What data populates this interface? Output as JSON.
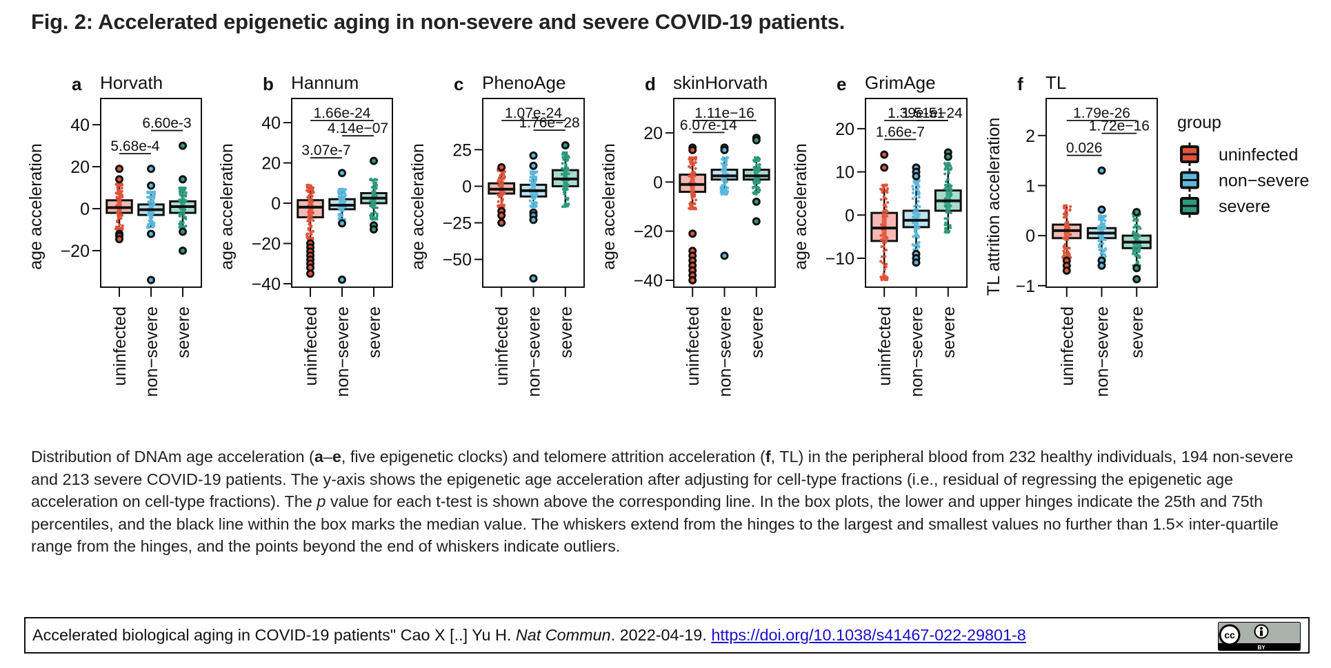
{
  "figure": {
    "title": "Fig. 2: Accelerated epigenetic aging in non-severe and severe COVID-19 patients."
  },
  "caption": {
    "segments": [
      {
        "text": "Distribution of DNAm age acceleration (",
        "style": "normal"
      },
      {
        "text": "a",
        "style": "bold"
      },
      {
        "text": "–",
        "style": "normal"
      },
      {
        "text": "e",
        "style": "bold"
      },
      {
        "text": ", five epigenetic clocks) and telomere attrition acceleration (",
        "style": "normal"
      },
      {
        "text": "f",
        "style": "bold"
      },
      {
        "text": ", TL) in the peripheral blood from 232 healthy individuals, 194 non-severe and 213 severe COVID-19 patients. The y-axis shows the epigenetic age acceleration after adjusting for cell-type fractions (i.e., residual of regressing the epigenetic age acceleration on cell-type fractions). The ",
        "style": "normal"
      },
      {
        "text": "p",
        "style": "italic"
      },
      {
        "text": " value for each t-test is shown above the corresponding line. In the box plots, the lower and upper hinges indicate the 25th and 75th percentiles, and the black line within the box marks the median value. The whiskers extend from the hinges to the largest and smallest values no further than 1.5× inter-quartile range from the hinges, and the points beyond the end of whiskers indicate outliers.",
        "style": "normal"
      }
    ]
  },
  "citation": {
    "text": "Accelerated biological aging in COVID-19 patients\" Cao X [..] Yu H. ",
    "journal": "Nat Commun",
    "date_text": ". 2022-04-19. ",
    "link": "https://doi.org/10.1038/s41467-022-29801-8",
    "license_badge": "cc-by-icon",
    "license_label": "BY"
  },
  "chart_data": {
    "type": "box",
    "categories": [
      "uninfected",
      "non−severe",
      "severe"
    ],
    "legend": {
      "title": "group",
      "position": "right",
      "entries": [
        {
          "label": "uninfected",
          "color": "#e0533a",
          "fill": "#f4b9b2"
        },
        {
          "label": "non−severe",
          "color": "#5bb8dc",
          "fill": "#bfe3f1"
        },
        {
          "label": "severe",
          "color": "#2e9a7c",
          "fill": "#a9dccd"
        }
      ]
    },
    "panels": [
      {
        "letter": "a",
        "title": "Horvath",
        "ylabel": "age acceleration",
        "ylim": [
          -37.4,
          52.5
        ],
        "yticks": [
          40,
          20,
          0,
          -20
        ],
        "ytick_labels": [
          "40",
          "20",
          "0",
          "−20"
        ],
        "groups": [
          {
            "q1": -2,
            "median": 0.5,
            "q3": 4,
            "whisker_low": -10,
            "whisker_high": 12,
            "outliers": [
              19,
              14,
              -12,
              -13,
              -14.5
            ]
          },
          {
            "q1": -3,
            "median": -0.5,
            "q3": 2,
            "whisker_low": -9,
            "whisker_high": 8,
            "outliers": [
              19,
              11,
              -12,
              -34
            ]
          },
          {
            "q1": -2,
            "median": 1,
            "q3": 3.5,
            "whisker_low": -9,
            "whisker_high": 10,
            "outliers": [
              30,
              14,
              -11,
              -20
            ]
          }
        ],
        "comparisons": [
          {
            "pair": [
              "uninfected",
              "non−severe"
            ],
            "p": "5.68e-4"
          },
          {
            "pair": [
              "non−severe",
              "severe"
            ],
            "p": "6.60e-3"
          }
        ]
      },
      {
        "letter": "b",
        "title": "Hannum",
        "ylabel": "age acceleration",
        "ylim": [
          -41.7,
          52
        ],
        "yticks": [
          40,
          20,
          0,
          -20,
          -40
        ],
        "ytick_labels": [
          "40",
          "20",
          "0",
          "−20",
          "−40"
        ],
        "groups": [
          {
            "q1": -7,
            "median": -2,
            "q3": 1.5,
            "whisker_low": -18,
            "whisker_high": 9,
            "outliers": [
              -20,
              -22,
              -24,
              -26,
              -28,
              -30,
              -32,
              -35
            ]
          },
          {
            "q1": -3,
            "median": -1,
            "q3": 2,
            "whisker_low": -9,
            "whisker_high": 7,
            "outliers": [
              15,
              -10,
              -38
            ]
          },
          {
            "q1": 0,
            "median": 2.5,
            "q3": 5,
            "whisker_low": -8,
            "whisker_high": 12,
            "outliers": [
              21,
              -11,
              -13
            ]
          }
        ],
        "comparisons": [
          {
            "pair": [
              "uninfected",
              "non−severe"
            ],
            "p": "3.07e-7"
          },
          {
            "pair": [
              "uninfected",
              "severe"
            ],
            "p": "1.66e-24"
          },
          {
            "pair": [
              "non−severe",
              "severe"
            ],
            "p": "4.14e−07"
          }
        ]
      },
      {
        "letter": "c",
        "title": "PhenoAge",
        "ylabel": "age acceleration",
        "ylim": [
          -69,
          60
        ],
        "yticks": [
          25,
          0,
          -25,
          -50
        ],
        "ytick_labels": [
          "25",
          "0",
          "−25",
          "−50"
        ],
        "groups": [
          {
            "q1": -5,
            "median": -2,
            "q3": 2,
            "whisker_low": -14,
            "whisker_high": 12,
            "outliers": [
              13,
              -17,
              -20,
              -25
            ]
          },
          {
            "q1": -7,
            "median": -3,
            "q3": 1,
            "whisker_low": -14,
            "whisker_high": 10,
            "outliers": [
              21,
              14,
              -18,
              -20,
              -23,
              -63
            ]
          },
          {
            "q1": 0,
            "median": 5,
            "q3": 11,
            "whisker_low": -14,
            "whisker_high": 23,
            "outliers": [
              28
            ]
          }
        ],
        "comparisons": [
          {
            "pair": [
              "uninfected",
              "severe"
            ],
            "p": "1.07e-24"
          },
          {
            "pair": [
              "non−severe",
              "severe"
            ],
            "p": "1.76e−28"
          }
        ]
      },
      {
        "letter": "d",
        "title": "skinHorvath",
        "ylabel": "age acceleration",
        "ylim": [
          -42.8,
          34
        ],
        "yticks": [
          20,
          0,
          -20,
          -40
        ],
        "ytick_labels": [
          "20",
          "0",
          "−20",
          "−40"
        ],
        "groups": [
          {
            "q1": -4,
            "median": -1,
            "q3": 3,
            "whisker_low": -11,
            "whisker_high": 10,
            "outliers": [
              14,
              13,
              -21,
              -28,
              -30,
              -32,
              -34,
              -36,
              -38,
              -40
            ]
          },
          {
            "q1": 1,
            "median": 2.5,
            "q3": 5,
            "whisker_low": -5,
            "whisker_high": 10,
            "outliers": [
              14,
              13,
              -30
            ]
          },
          {
            "q1": 1,
            "median": 2.5,
            "q3": 5,
            "whisker_low": -5,
            "whisker_high": 10,
            "outliers": [
              18,
              17,
              -8,
              -16
            ]
          }
        ],
        "comparisons": [
          {
            "pair": [
              "uninfected",
              "non−severe"
            ],
            "p": "6.07e-14"
          },
          {
            "pair": [
              "uninfected",
              "severe"
            ],
            "p": "1.11e−16"
          }
        ]
      },
      {
        "letter": "e",
        "title": "GrimAge",
        "ylabel": "age acceleration",
        "ylim": [
          -16.7,
          27
        ],
        "yticks": [
          20,
          10,
          0,
          -10
        ],
        "ytick_labels": [
          "20",
          "10",
          "0",
          "−10"
        ],
        "groups": [
          {
            "q1": -6,
            "median": -3,
            "q3": 0.5,
            "whisker_low": -15,
            "whisker_high": 7,
            "outliers": [
              14,
              11
            ]
          },
          {
            "q1": -2.8,
            "median": -1.2,
            "q3": 1,
            "whisker_low": -8,
            "whisker_high": 8,
            "outliers": [
              11,
              10,
              9,
              -9,
              -10,
              -11
            ]
          },
          {
            "q1": 1,
            "median": 3.3,
            "q3": 5.7,
            "whisker_low": -4,
            "whisker_high": 12,
            "outliers": [
              14.5,
              13.5
            ]
          }
        ],
        "comparisons": [
          {
            "pair": [
              "uninfected",
              "non−severe"
            ],
            "p": "1.66e-7"
          },
          {
            "pair": [
              "uninfected",
              "severe"
            ],
            "p": "1.39e-51"
          },
          {
            "pair": [
              "non−severe",
              "severe"
            ],
            "p": "1.51e−24"
          }
        ]
      },
      {
        "letter": "f",
        "title": "TL",
        "ylabel": "TL attrition acceleration",
        "ylim": [
          -1.03,
          2.74
        ],
        "yticks": [
          2,
          1,
          0,
          -1
        ],
        "ytick_labels": [
          "2",
          "1",
          "0",
          "−1"
        ],
        "groups": [
          {
            "q1": -0.05,
            "median": 0.1,
            "q3": 0.22,
            "whisker_low": -0.45,
            "whisker_high": 0.6,
            "outliers": [
              -0.5,
              -0.6,
              -0.7
            ]
          },
          {
            "q1": -0.05,
            "median": 0.05,
            "q3": 0.15,
            "whisker_low": -0.45,
            "whisker_high": 0.4,
            "outliers": [
              1.3,
              0.52,
              -0.5,
              -0.6
            ]
          },
          {
            "q1": -0.25,
            "median": -0.13,
            "q3": 0,
            "whisker_low": -0.6,
            "whisker_high": 0.45,
            "outliers": [
              0.47,
              -0.65,
              -0.87
            ]
          }
        ],
        "comparisons": [
          {
            "pair": [
              "uninfected",
              "non−severe"
            ],
            "p": "0.026"
          },
          {
            "pair": [
              "uninfected",
              "severe"
            ],
            "p": "1.79e-26"
          },
          {
            "pair": [
              "non−severe",
              "severe"
            ],
            "p": "1.72e−16"
          }
        ]
      }
    ]
  }
}
